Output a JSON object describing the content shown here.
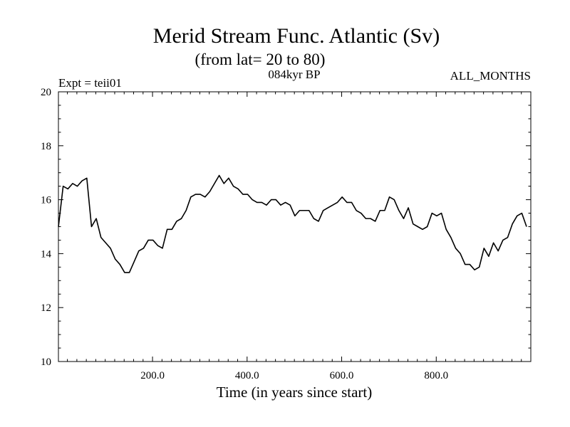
{
  "chart_data": {
    "type": "line",
    "title": "Merid Stream Func. Atlantic (Sv)",
    "subtitle": "(from lat= 20 to 80)",
    "annotations": {
      "left": "Expt = teii01",
      "center": "084kyr BP",
      "right": "ALL_MONTHS"
    },
    "xlabel": "Time (in years since start)",
    "ylabel": "",
    "xlim": [
      1,
      1000
    ],
    "ylim": [
      10,
      20
    ],
    "xticks": [
      200,
      400,
      600,
      800
    ],
    "xtick_labels": [
      "200.0",
      "400.0",
      "600.0",
      "800.0"
    ],
    "yticks": [
      10,
      12,
      14,
      16,
      18,
      20
    ],
    "ytick_labels": [
      "10",
      "12",
      "14",
      "16",
      "18",
      "20"
    ],
    "grid": false,
    "line_color": "#000000",
    "series": [
      {
        "x_step": 10,
        "values": [
          15.0,
          16.5,
          16.4,
          16.6,
          16.5,
          16.7,
          16.8,
          15.0,
          15.3,
          14.6,
          14.4,
          14.2,
          13.8,
          13.6,
          13.3,
          13.3,
          13.7,
          14.1,
          14.2,
          14.5,
          14.5,
          14.3,
          14.2,
          14.9,
          14.9,
          15.2,
          15.3,
          15.6,
          16.1,
          16.2,
          16.2,
          16.1,
          16.3,
          16.6,
          16.9,
          16.6,
          16.8,
          16.5,
          16.4,
          16.2,
          16.2,
          16.0,
          15.9,
          15.9,
          15.8,
          16.0,
          16.0,
          15.8,
          15.9,
          15.8,
          15.4,
          15.6,
          15.6,
          15.6,
          15.3,
          15.2,
          15.6,
          15.7,
          15.8,
          15.9,
          16.1,
          15.9,
          15.9,
          15.6,
          15.5,
          15.3,
          15.3,
          15.2,
          15.6,
          15.6,
          16.1,
          16.0,
          15.6,
          15.3,
          15.7,
          15.1,
          15.0,
          14.9,
          15.0,
          15.5,
          15.4,
          15.5,
          14.9,
          14.6,
          14.2,
          14.0,
          13.6,
          13.6,
          13.4,
          13.5,
          14.2,
          13.9,
          14.4,
          14.1,
          14.5,
          14.6,
          15.1,
          15.4,
          15.5,
          15.0
        ]
      }
    ]
  }
}
